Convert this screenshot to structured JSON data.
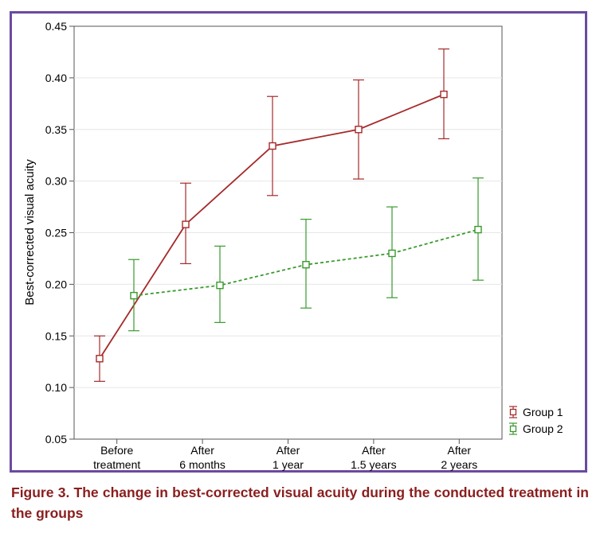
{
  "chart_data": {
    "type": "line",
    "title": "",
    "xlabel": "",
    "ylabel": "Best-corrected visual acuity",
    "categories": [
      [
        "Before",
        "treatment"
      ],
      [
        "After",
        "6 months"
      ],
      [
        "After",
        "1 year"
      ],
      [
        "After",
        "1.5 years"
      ],
      [
        "After",
        "2 years"
      ]
    ],
    "ylim": [
      0.05,
      0.45
    ],
    "yticks": [
      "0.05",
      "0.10",
      "0.15",
      "0.20",
      "0.25",
      "0.30",
      "0.35",
      "0.40",
      "0.45"
    ],
    "grid": true,
    "legend_position": "bottom-right",
    "series": [
      {
        "name": "Group 1",
        "color": "#a52a2a",
        "dash": false,
        "values": [
          0.128,
          0.258,
          0.334,
          0.35,
          0.384
        ],
        "lower": [
          0.106,
          0.22,
          0.286,
          0.302,
          0.341
        ],
        "upper": [
          0.15,
          0.298,
          0.382,
          0.398,
          0.428
        ]
      },
      {
        "name": "Group 2",
        "color": "#3a9a2e",
        "dash": true,
        "values": [
          0.189,
          0.199,
          0.219,
          0.23,
          0.253
        ],
        "lower": [
          0.155,
          0.163,
          0.177,
          0.187,
          0.204
        ],
        "upper": [
          0.224,
          0.237,
          0.263,
          0.275,
          0.303
        ]
      }
    ]
  },
  "caption": "Figure 3. The change in best-corrected visual acuity during the conducted treatment in the groups"
}
